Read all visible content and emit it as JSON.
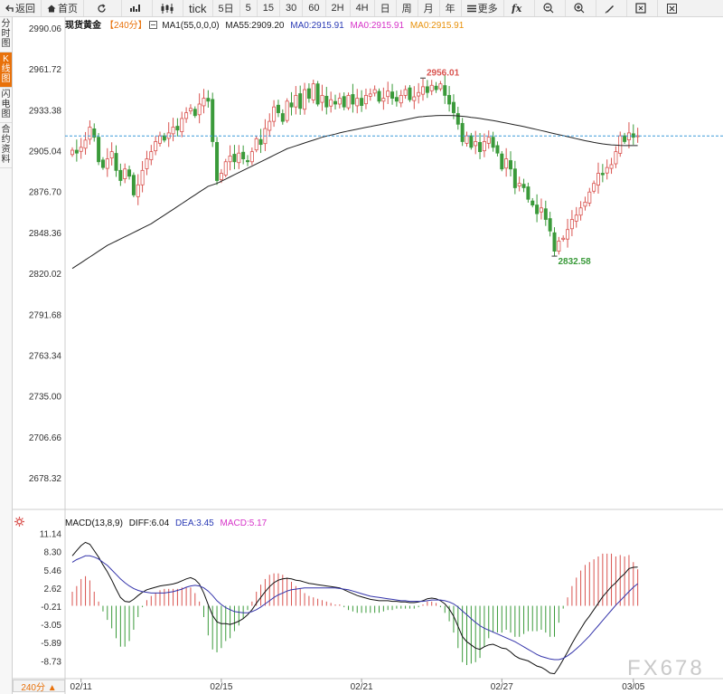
{
  "toolbar": {
    "back": "返回",
    "home": "首页",
    "timeframes": [
      "tick",
      "5日",
      "5",
      "15",
      "30",
      "60",
      "2H",
      "4H",
      "日",
      "周",
      "月",
      "年"
    ],
    "more": "更多"
  },
  "sidebar": [
    {
      "label": "分时图",
      "active": false
    },
    {
      "label": "K线图",
      "active": true
    },
    {
      "label": "闪电图",
      "active": false
    },
    {
      "label": "合约资料",
      "active": false
    }
  ],
  "legend": {
    "name": "现货黄金",
    "period": "【240分】",
    "ma_params": "MA1(55,0,0,0)",
    "ma55": "MA55:2909.20",
    "ma0_a": "MA0:2915.91",
    "ma0_b": "MA0:2915.91",
    "ma0_c": "MA0:2915.91"
  },
  "macd_legend": {
    "params": "MACD(13,8,9)",
    "diff": "DIFF:6.04",
    "dea": "DEA:3.45",
    "macd": "MACD:5.17"
  },
  "period_button": "240分 ▲",
  "watermark": "FX678",
  "colors": {
    "up": "#d9534f",
    "down": "#3a9a3a",
    "ma": "#222222",
    "price_line": "#3a9ad9",
    "dea": "#3333aa",
    "accent": "#e8710a"
  },
  "chart_data": [
    {
      "type": "candlestick",
      "title": "现货黄金 240分",
      "yticks": [
        "2990.06",
        "2961.72",
        "2933.38",
        "2905.04",
        "2876.70",
        "2848.36",
        "2820.02",
        "2791.68",
        "2763.34",
        "2735.00",
        "2706.66",
        "2678.32"
      ],
      "ylim": [
        2678.32,
        2990.06
      ],
      "xticks": [
        {
          "label": "02/11",
          "index": 2
        },
        {
          "label": "02/15",
          "index": 34
        },
        {
          "label": "02/21",
          "index": 66
        },
        {
          "label": "02/27",
          "index": 98
        },
        {
          "label": "03/05",
          "index": 128
        }
      ],
      "current_price": 2915.91,
      "annotations": [
        {
          "label": "2956.01",
          "index": 80,
          "value": 2956.01
        },
        {
          "label": "2832.58",
          "index": 110,
          "value": 2832.58
        }
      ],
      "closes": [
        2906,
        2904,
        2908,
        2913,
        2922,
        2915,
        2898,
        2894,
        2900,
        2905,
        2892,
        2885,
        2893,
        2888,
        2875,
        2882,
        2892,
        2900,
        2905,
        2912,
        2916,
        2913,
        2918,
        2922,
        2920,
        2928,
        2932,
        2935,
        2930,
        2938,
        2942,
        2940,
        2912,
        2885,
        2890,
        2898,
        2902,
        2898,
        2904,
        2900,
        2898,
        2905,
        2914,
        2910,
        2921,
        2926,
        2936,
        2932,
        2926,
        2940,
        2936,
        2944,
        2935,
        2948,
        2942,
        2952,
        2938,
        2944,
        2936,
        2941,
        2938,
        2942,
        2936,
        2944,
        2938,
        2942,
        2937,
        2944,
        2945,
        2948,
        2940,
        2942,
        2947,
        2942,
        2940,
        2944,
        2948,
        2941,
        2943,
        2946,
        2950,
        2946,
        2951,
        2948,
        2952,
        2944,
        2938,
        2932,
        2924,
        2912,
        2916,
        2908,
        2912,
        2905,
        2912,
        2915,
        2908,
        2904,
        2893,
        2900,
        2893,
        2880,
        2883,
        2880,
        2872,
        2868,
        2862,
        2866,
        2858,
        2850,
        2836,
        2843,
        2845,
        2851,
        2858,
        2861,
        2866,
        2870,
        2877,
        2883,
        2890,
        2889,
        2894,
        2896,
        2905,
        2916,
        2912,
        2918,
        2915,
        2916
      ],
      "ma55": [
        2824,
        2826,
        2828,
        2830,
        2832,
        2834,
        2836,
        2838,
        2840,
        2841.5,
        2843,
        2844.5,
        2846,
        2847.5,
        2849,
        2850.5,
        2852,
        2853.5,
        2855,
        2857,
        2859,
        2861,
        2863,
        2865,
        2867,
        2869,
        2871,
        2873,
        2875,
        2877,
        2879,
        2881,
        2882,
        2883,
        2884.5,
        2886,
        2887.5,
        2889,
        2890.5,
        2892,
        2893.5,
        2895,
        2896.5,
        2898,
        2899.5,
        2901,
        2902.5,
        2904,
        2905.5,
        2907,
        2908,
        2909,
        2910,
        2911,
        2912,
        2913,
        2914,
        2915,
        2915.8,
        2916.5,
        2917.2,
        2918,
        2918.7,
        2919.4,
        2920,
        2920.6,
        2921.2,
        2921.8,
        2922.4,
        2923,
        2923.6,
        2924.2,
        2924.8,
        2925.4,
        2926,
        2926.6,
        2927.2,
        2927.8,
        2928.4,
        2929,
        2929.3,
        2929.6,
        2929.8,
        2930,
        2930.1,
        2930.1,
        2930.1,
        2930,
        2929.8,
        2929.5,
        2929.2,
        2928.8,
        2928.4,
        2928,
        2927.5,
        2927,
        2926.5,
        2926,
        2925.4,
        2924.8,
        2924.2,
        2923.6,
        2923,
        2922.4,
        2921.7,
        2921,
        2920.3,
        2919.6,
        2918.9,
        2918.2,
        2917.5,
        2916.8,
        2916.1,
        2915.4,
        2914.7,
        2914,
        2913.3,
        2912.6,
        2912,
        2911.4,
        2910.9,
        2910.4,
        2910,
        2909.7,
        2909.5,
        2909.3,
        2909.2,
        2909.2,
        2909.2,
        2909.2
      ]
    },
    {
      "type": "macd",
      "title": "MACD(13,8,9)",
      "yticks": [
        "11.14",
        "8.30",
        "5.46",
        "2.62",
        "-0.21",
        "-3.05",
        "-5.89",
        "-8.73"
      ],
      "ylim": [
        -10.8,
        12.5
      ],
      "diff": [
        7.8,
        8.6,
        9.4,
        9.9,
        9.6,
        8.6,
        7.6,
        6.4,
        5.3,
        4.0,
        2.6,
        1.3,
        0.7,
        0.6,
        1.0,
        1.6,
        2.1,
        2.5,
        2.7,
        2.9,
        3.1,
        3.2,
        3.3,
        3.4,
        3.6,
        3.9,
        4.2,
        4.4,
        4.1,
        3.4,
        2.0,
        0.2,
        -1.5,
        -2.5,
        -2.8,
        -2.8,
        -2.9,
        -2.7,
        -2.4,
        -2.0,
        -1.4,
        -0.6,
        0.4,
        1.3,
        2.2,
        3.0,
        3.6,
        4.0,
        4.2,
        4.3,
        4.2,
        4.0,
        3.9,
        3.7,
        3.5,
        3.4,
        3.3,
        3.2,
        3.1,
        3.0,
        2.9,
        2.8,
        2.5,
        2.2,
        1.9,
        1.6,
        1.4,
        1.2,
        1.0,
        0.9,
        0.8,
        0.8,
        0.8,
        0.7,
        0.7,
        0.6,
        0.6,
        0.5,
        0.5,
        0.6,
        0.8,
        1.1,
        1.2,
        1.1,
        0.8,
        0.3,
        -0.5,
        -1.6,
        -3.2,
        -4.8,
        -5.6,
        -6.1,
        -6.6,
        -6.8,
        -6.4,
        -6.1,
        -6.0,
        -6.3,
        -6.6,
        -6.7,
        -7.2,
        -7.8,
        -8.2,
        -8.4,
        -8.6,
        -9.0,
        -9.4,
        -9.6,
        -10.0,
        -10.5,
        -10.6,
        -9.6,
        -8.4,
        -7.2,
        -5.9,
        -4.7,
        -3.6,
        -2.5,
        -1.6,
        -0.6,
        0.4,
        1.4,
        2.2,
        3.0,
        3.6,
        4.4,
        5.0,
        5.8,
        6.0,
        6.04
      ],
      "dea": [
        6.8,
        7.2,
        7.5,
        7.8,
        7.8,
        7.6,
        7.3,
        6.8,
        6.3,
        5.6,
        4.9,
        4.2,
        3.6,
        3.1,
        2.7,
        2.4,
        2.2,
        2.1,
        2.0,
        2.0,
        2.0,
        2.0,
        2.1,
        2.2,
        2.4,
        2.6,
        2.9,
        3.1,
        3.2,
        3.1,
        2.8,
        2.3,
        1.6,
        0.8,
        0.2,
        -0.3,
        -0.6,
        -0.9,
        -1.0,
        -1.1,
        -1.1,
        -0.9,
        -0.6,
        -0.2,
        0.3,
        0.8,
        1.3,
        1.7,
        2.0,
        2.3,
        2.5,
        2.6,
        2.7,
        2.8,
        2.8,
        2.8,
        2.8,
        2.8,
        2.8,
        2.8,
        2.8,
        2.7,
        2.6,
        2.5,
        2.3,
        2.1,
        1.9,
        1.7,
        1.5,
        1.4,
        1.3,
        1.2,
        1.1,
        1.0,
        0.9,
        0.8,
        0.8,
        0.7,
        0.7,
        0.7,
        0.7,
        0.8,
        0.9,
        0.9,
        0.9,
        0.8,
        0.6,
        0.3,
        -0.2,
        -0.8,
        -1.4,
        -2.0,
        -2.6,
        -3.1,
        -3.5,
        -3.8,
        -4.1,
        -4.4,
        -4.7,
        -5.0,
        -5.3,
        -5.6,
        -6.0,
        -6.4,
        -6.8,
        -7.2,
        -7.6,
        -7.9,
        -8.1,
        -8.3,
        -8.4,
        -8.4,
        -8.2,
        -7.8,
        -7.3,
        -6.7,
        -6.1,
        -5.4,
        -4.7,
        -3.9,
        -3.1,
        -2.3,
        -1.5,
        -0.7,
        0.1,
        0.8,
        1.5,
        2.2,
        2.9,
        3.45
      ]
    }
  ]
}
